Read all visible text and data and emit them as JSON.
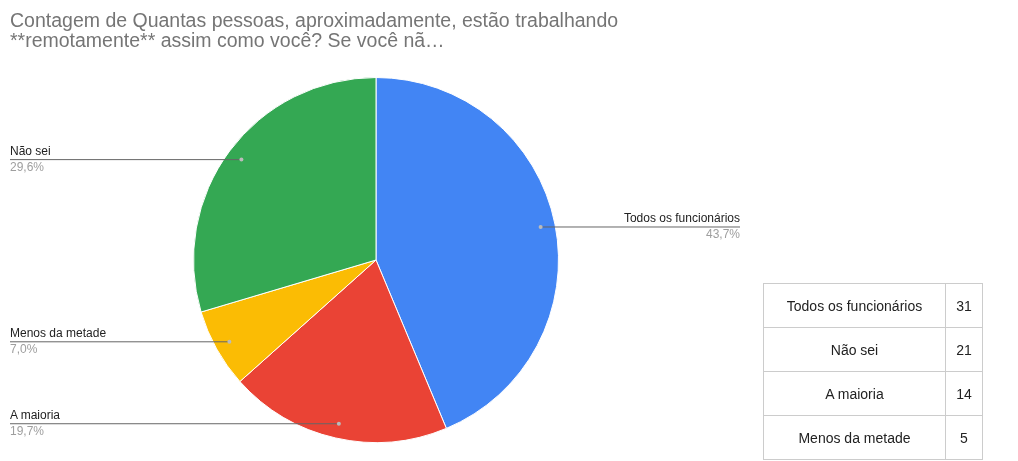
{
  "chart_data": [
    {
      "type": "pie",
      "title": "Contagem de Quantas pessoas, aproximadamente, estão trabalhando **remotamente** assim como você? Se você nã…",
      "categories": [
        "Todos os funcionários",
        "A maioria",
        "Menos da metade",
        "Não sei"
      ],
      "values": [
        43.7,
        19.7,
        7.0,
        29.6
      ],
      "colors": [
        "#4285f4",
        "#ea4335",
        "#fbbc04",
        "#34a853"
      ],
      "value_labels": [
        "43,7%",
        "19,7%",
        "7,0%",
        "29,6%"
      ]
    },
    {
      "type": "other",
      "categories": [
        "Todos os funcionários",
        "Não sei",
        "A maioria",
        "Menos da metade"
      ],
      "values": [
        31,
        21,
        14,
        5
      ],
      "data_labels": true
    }
  ]
}
